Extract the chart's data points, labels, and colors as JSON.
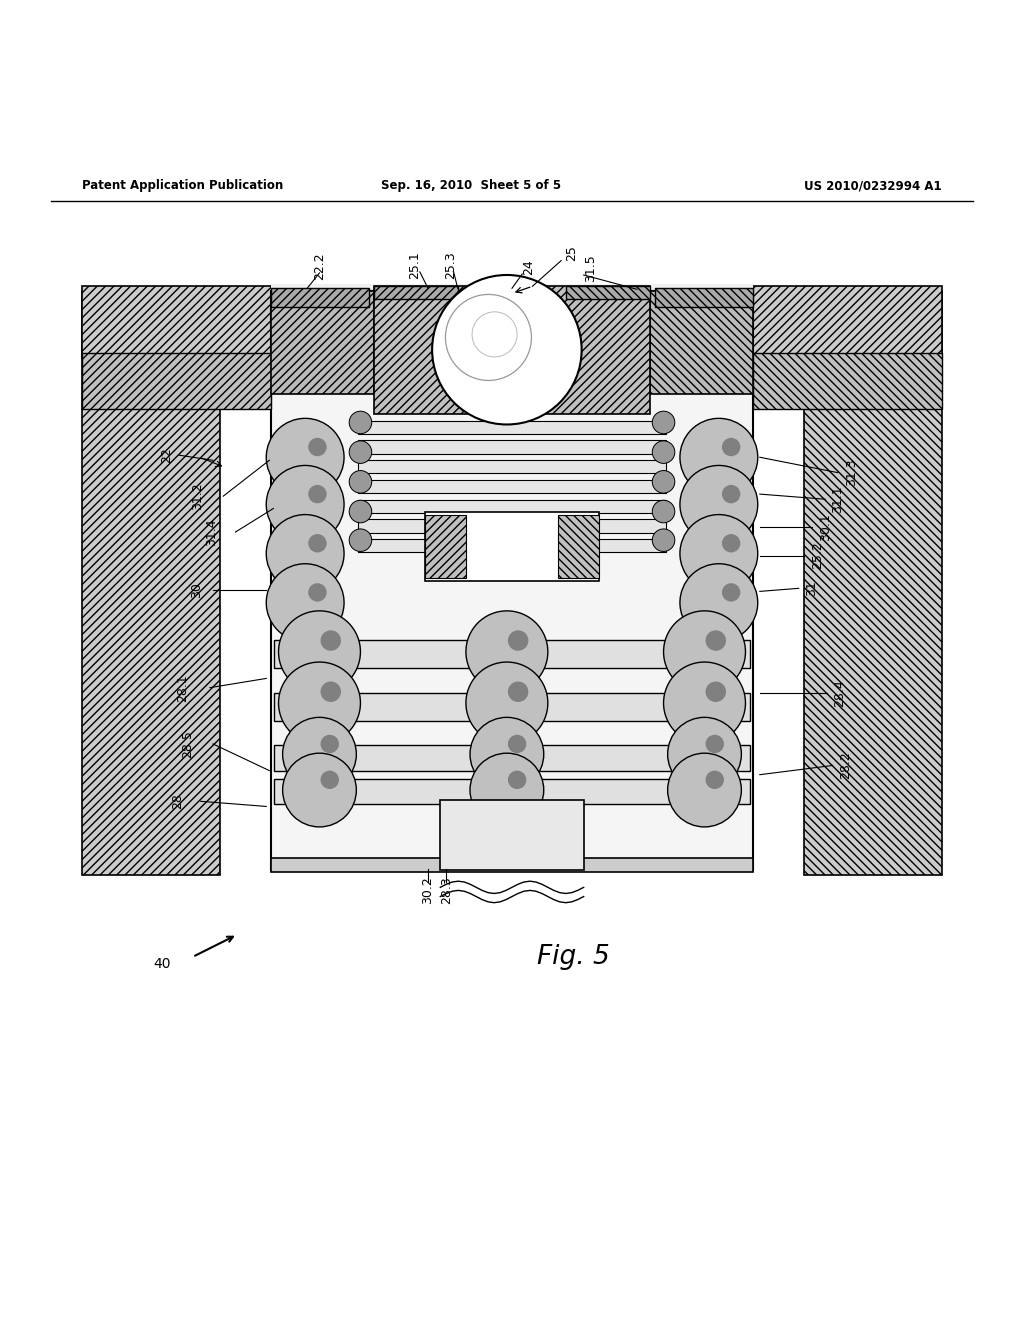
{
  "background_color": "#ffffff",
  "header_left": "Patent Application Publication",
  "header_mid": "Sep. 16, 2010  Sheet 5 of 5",
  "header_right": "US 2010/0232994 A1",
  "fig_label": "Fig. 5",
  "fig_number_label": "40"
}
